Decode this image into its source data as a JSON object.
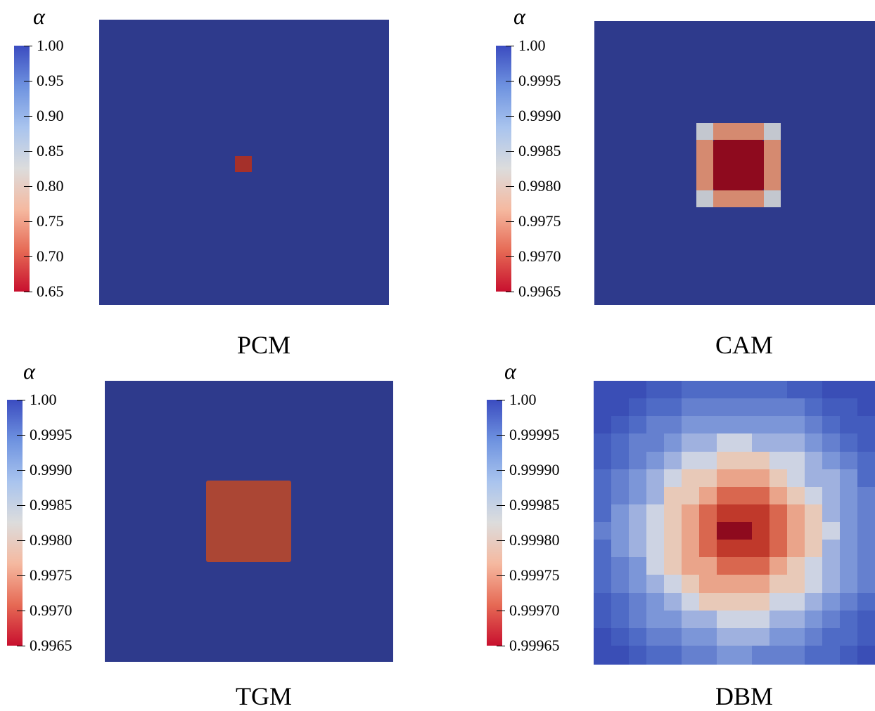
{
  "chart_data": [
    {
      "type": "heatmap",
      "title": "PCM",
      "colorbar_label": "α",
      "colorbar_ticks": [
        "1.00",
        "0.95",
        "0.90",
        "0.85",
        "0.80",
        "0.75",
        "0.70",
        "0.65"
      ],
      "colorbar_range": [
        0.65,
        1.0
      ],
      "background_value": 1.0,
      "features": [
        {
          "shape": "square",
          "value": 0.67,
          "color": "#a5302a"
        }
      ]
    },
    {
      "type": "heatmap",
      "title": "CAM",
      "colorbar_label": "α",
      "colorbar_ticks": [
        "1.00",
        "0.9995",
        "0.9990",
        "0.9985",
        "0.9980",
        "0.9975",
        "0.9970",
        "0.9965"
      ],
      "colorbar_range": [
        0.9965,
        1.0
      ],
      "background_value": 1.0,
      "features": [
        {
          "shape": "center-square",
          "value": 0.9965,
          "color": "#8e0a1e"
        },
        {
          "shape": "edge-bands",
          "value": 0.9978,
          "color": "#d58a70"
        },
        {
          "shape": "corner-cells",
          "value": 0.9985,
          "color": "#c3c7cf"
        }
      ]
    },
    {
      "type": "heatmap",
      "title": "TGM",
      "colorbar_label": "α",
      "colorbar_ticks": [
        "1.00",
        "0.9995",
        "0.9990",
        "0.9985",
        "0.9980",
        "0.9975",
        "0.9970",
        "0.9965"
      ],
      "colorbar_range": [
        0.9965,
        1.0
      ],
      "background_value": 1.0,
      "features": [
        {
          "shape": "square",
          "value": 0.9972,
          "color": "#ab4634"
        }
      ]
    },
    {
      "type": "heatmap",
      "title": "DBM",
      "colorbar_label": "α",
      "colorbar_ticks": [
        "1.00",
        "0.99995",
        "0.99990",
        "0.99985",
        "0.99980",
        "0.99975",
        "0.99970",
        "0.99965"
      ],
      "colorbar_range": [
        0.99965,
        1.0
      ],
      "background_value": 1.0,
      "features": [
        {
          "shape": "radial-gradient",
          "min_value": 0.99965,
          "max_value": 1.0
        }
      ]
    }
  ],
  "colors": {
    "field_blue": "#2e3a8c",
    "cmap": [
      "#c8102e",
      "#e66a55",
      "#f5b9a0",
      "#dcdcdc",
      "#a9c4ee",
      "#6f93e0",
      "#3b4cc0"
    ]
  }
}
